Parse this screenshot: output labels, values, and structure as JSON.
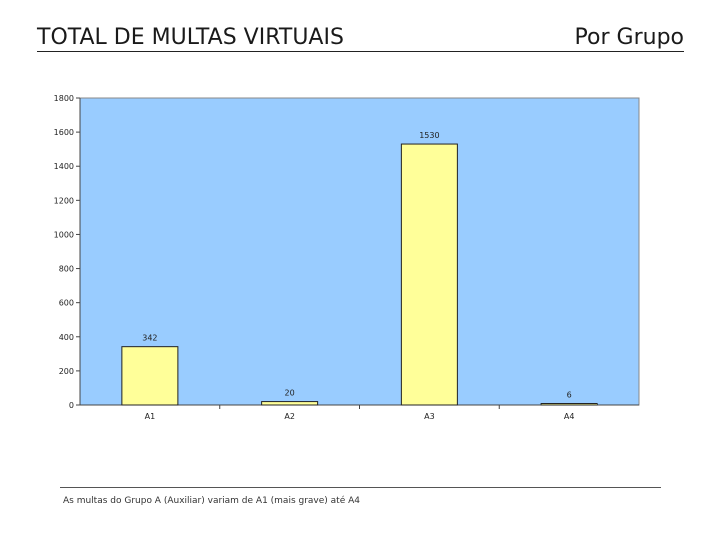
{
  "header": {
    "title": "TOTAL DE MULTAS VIRTUAIS",
    "subtitle": "Por Grupo"
  },
  "footer": {
    "note": "As multas do Grupo A (Auxiliar) variam de A1 (mais grave) até A4"
  },
  "colors": {
    "plot_background": "#99ccff",
    "bar_fill": "#ffff99",
    "bar_stroke": "#222222"
  },
  "chart_data": {
    "type": "bar",
    "categories": [
      "A1",
      "A2",
      "A3",
      "A4"
    ],
    "values": [
      342,
      20,
      1530,
      6
    ],
    "data_labels": [
      "342",
      "20",
      "1530",
      "6"
    ],
    "ylim": [
      0,
      1800
    ],
    "yticks": [
      0,
      200,
      400,
      600,
      800,
      1000,
      1200,
      1400,
      1600,
      1800
    ],
    "grid": false,
    "title": "",
    "xlabel": "",
    "ylabel": ""
  }
}
